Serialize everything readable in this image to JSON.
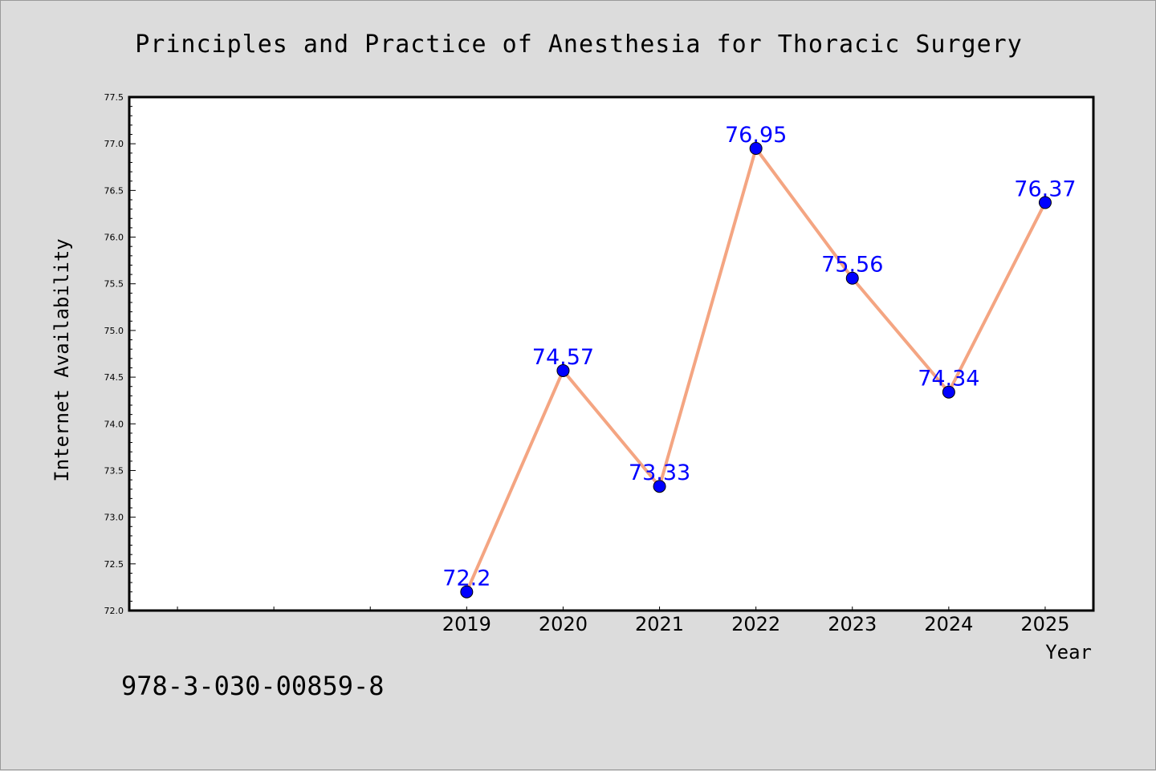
{
  "chart_data": {
    "type": "line",
    "title": "Principles and Practice of Anesthesia for Thoracic Surgery",
    "xlabel": "Year",
    "ylabel": "Internet Availability",
    "categories": [
      "2019",
      "2020",
      "2021",
      "2022",
      "2023",
      "2024",
      "2025"
    ],
    "x": [
      2019,
      2020,
      2021,
      2022,
      2023,
      2024,
      2025
    ],
    "values": [
      72.2,
      74.57,
      73.33,
      76.95,
      75.56,
      74.34,
      76.37
    ],
    "data_labels": [
      "72.2",
      "74.57",
      "73.33",
      "76.95",
      "75.56",
      "74.34",
      "76.37"
    ],
    "xlim": [
      2015.5,
      2025.5
    ],
    "ylim": [
      72.0,
      77.5
    ],
    "yticks": [
      72.0,
      72.5,
      73.0,
      73.5,
      74.0,
      74.5,
      75.0,
      75.5,
      76.0,
      76.5,
      77.0,
      77.5
    ],
    "ytick_labels": [
      "72.0",
      "72.5",
      "73.0",
      "73.5",
      "74.0",
      "74.5",
      "75.0",
      "75.5",
      "76.0",
      "76.5",
      "77.0",
      "77.5"
    ],
    "grid": false,
    "legend": "none",
    "line_color": "#f4a582",
    "marker_color": "#0000ff",
    "label_color": "#0000ff"
  },
  "footer": {
    "isbn": "978-3-030-00859-8"
  }
}
